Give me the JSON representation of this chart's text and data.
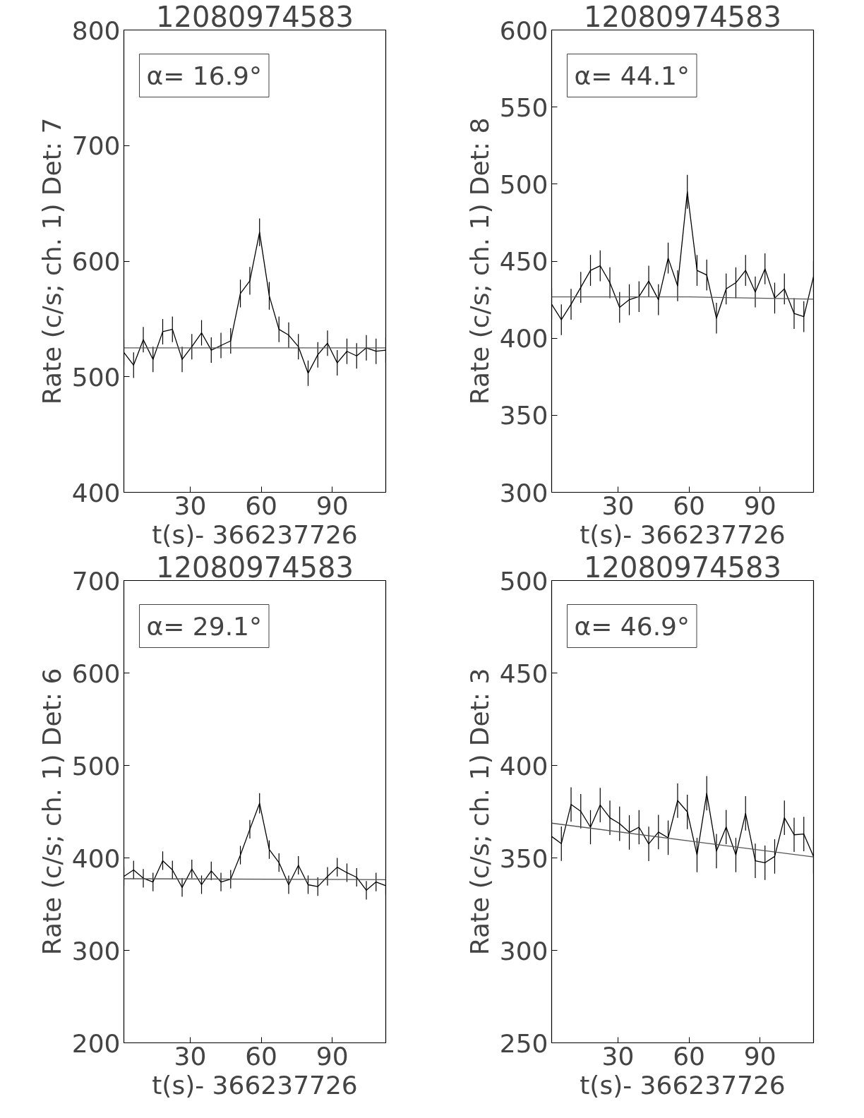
{
  "chart_data": [
    {
      "type": "line",
      "title": "12080974583",
      "xlabel": "t(s)- 366237726",
      "ylabel": "Rate (c/s; ch. 1) Det: 7",
      "annotations": [
        "α= 16.9°"
      ],
      "xlim": [
        2,
        112.6
      ],
      "xticks": [
        30,
        60,
        90
      ],
      "ylim": [
        400,
        800
      ],
      "yticks": [
        400,
        500,
        600,
        700,
        800
      ],
      "grid": false,
      "x": [
        2.0,
        6.1,
        10.2,
        14.3,
        18.4,
        22.5,
        26.6,
        30.7,
        34.8,
        38.9,
        43.0,
        47.1,
        51.2,
        55.2,
        59.3,
        63.4,
        67.5,
        71.6,
        75.7,
        79.8,
        83.9,
        88.0,
        92.1,
        96.2,
        100.3,
        104.4,
        108.5,
        112.6
      ],
      "series": [
        {
          "color": "#000000",
          "values": [
            521,
            510,
            532,
            515,
            539,
            541,
            515,
            526,
            538,
            523,
            527,
            531,
            572,
            583,
            625,
            570,
            541,
            536,
            526,
            503,
            519,
            529,
            512,
            522,
            518,
            525,
            522,
            523
          ],
          "errors": [
            11,
            11,
            11,
            11,
            11,
            11,
            11,
            11,
            11,
            11,
            11,
            11,
            12,
            12,
            12,
            12,
            11,
            11,
            11,
            11,
            11,
            11,
            11,
            11,
            11,
            11,
            11,
            11
          ]
        },
        {
          "color": "#555555",
          "x": [
            2,
            112.6
          ],
          "values": [
            525,
            525
          ]
        }
      ]
    },
    {
      "type": "line",
      "title": "12080974583",
      "xlabel": "t(s)- 366237726",
      "ylabel": "Rate (c/s; ch. 1) Det: 8",
      "annotations": [
        "α= 44.1°"
      ],
      "xlim": [
        2,
        112.6
      ],
      "xticks": [
        30,
        60,
        90
      ],
      "ylim": [
        300,
        600
      ],
      "yticks": [
        300,
        350,
        400,
        450,
        500,
        550,
        600
      ],
      "grid": false,
      "x": [
        2.0,
        6.1,
        10.2,
        14.3,
        18.4,
        22.5,
        26.6,
        30.7,
        34.8,
        38.9,
        43.0,
        47.1,
        51.2,
        55.2,
        59.3,
        63.4,
        67.5,
        71.6,
        75.7,
        79.8,
        83.9,
        88.0,
        92.1,
        96.2,
        100.3,
        104.4,
        108.5,
        112.6
      ],
      "series": [
        {
          "color": "#000000",
          "values": [
            422,
            412,
            422,
            433,
            444,
            447,
            436,
            420,
            425,
            427,
            437,
            425,
            452,
            434,
            495,
            444,
            441,
            413,
            432,
            436,
            444,
            430,
            445,
            426,
            432,
            416,
            414,
            440
          ],
          "errors": [
            10,
            10,
            10,
            10,
            10,
            10,
            10,
            10,
            10,
            10,
            10,
            10,
            10,
            10,
            11,
            10,
            10,
            10,
            10,
            10,
            10,
            10,
            10,
            10,
            10,
            10,
            10,
            10
          ]
        },
        {
          "color": "#555555",
          "x": [
            2,
            60,
            112.6
          ],
          "values": [
            426.8,
            426.8,
            425.3
          ]
        }
      ]
    },
    {
      "type": "line",
      "title": "12080974583",
      "xlabel": "t(s)- 366237726",
      "ylabel": "Rate (c/s; ch. 1) Det: 6",
      "annotations": [
        "α= 29.1°"
      ],
      "xlim": [
        2,
        112.6
      ],
      "xticks": [
        30,
        60,
        90
      ],
      "ylim": [
        200,
        700
      ],
      "yticks": [
        200,
        300,
        400,
        500,
        600,
        700
      ],
      "grid": false,
      "x": [
        2.0,
        6.1,
        10.2,
        14.3,
        18.4,
        22.5,
        26.6,
        30.7,
        34.8,
        38.9,
        43.0,
        47.1,
        51.2,
        55.2,
        59.3,
        63.4,
        67.5,
        71.6,
        75.7,
        79.8,
        83.9,
        88.0,
        92.1,
        96.2,
        100.3,
        104.4,
        108.5,
        112.6
      ],
      "series": [
        {
          "color": "#000000",
          "values": [
            380,
            387,
            378,
            374,
            397,
            387,
            368,
            388,
            371,
            386,
            374,
            377,
            403,
            431,
            459,
            409,
            395,
            371,
            392,
            371,
            369,
            380,
            390,
            384,
            379,
            365,
            374,
            370
          ],
          "errors": [
            10,
            10,
            10,
            10,
            10,
            10,
            10,
            10,
            10,
            10,
            10,
            10,
            10,
            10,
            11,
            10,
            10,
            10,
            10,
            10,
            10,
            10,
            10,
            10,
            10,
            10,
            10,
            10
          ]
        },
        {
          "color": "#555555",
          "x": [
            2,
            112.6
          ],
          "values": [
            377.5,
            376.5
          ]
        }
      ]
    },
    {
      "type": "line",
      "title": "12080974583",
      "xlabel": "t(s)- 366237726",
      "ylabel": "Rate (c/s; ch. 1) Det: 3",
      "annotations": [
        "α= 46.9°"
      ],
      "xlim": [
        2,
        112.6
      ],
      "xticks": [
        30,
        60,
        90
      ],
      "ylim": [
        250,
        500
      ],
      "yticks": [
        250,
        300,
        350,
        400,
        450,
        500
      ],
      "grid": false,
      "x": [
        2.0,
        6.1,
        10.2,
        14.3,
        18.4,
        22.5,
        26.6,
        30.7,
        34.8,
        38.9,
        43.0,
        47.1,
        51.2,
        55.2,
        59.3,
        63.4,
        67.5,
        71.6,
        75.7,
        79.8,
        83.9,
        88.0,
        92.1,
        96.2,
        100.3,
        104.4,
        108.5,
        112.6
      ],
      "series": [
        {
          "color": "#000000",
          "values": [
            361.6,
            357.7,
            378.9,
            375.2,
            366.6,
            378.6,
            371.7,
            368.5,
            363.8,
            366.6,
            357.6,
            364,
            360.9,
            381,
            374.9,
            351.6,
            385,
            353.7,
            366.7,
            351.6,
            374.1,
            348.4,
            347.4,
            350.8,
            371.7,
            362.5,
            362.9,
            350.8
          ],
          "errors": [
            9.3,
            9.3,
            9.3,
            9.3,
            9.3,
            9.3,
            9.3,
            9.3,
            9.3,
            9.3,
            9.3,
            9.3,
            9.3,
            9.3,
            9.3,
            9.3,
            9.3,
            9.3,
            9.3,
            9.3,
            9.3,
            9.3,
            9.3,
            9.3,
            9.3,
            9.3,
            9.3,
            9.3
          ]
        },
        {
          "color": "#555555",
          "x": [
            2,
            112.6
          ],
          "values": [
            368.8,
            350.5
          ]
        }
      ]
    }
  ]
}
